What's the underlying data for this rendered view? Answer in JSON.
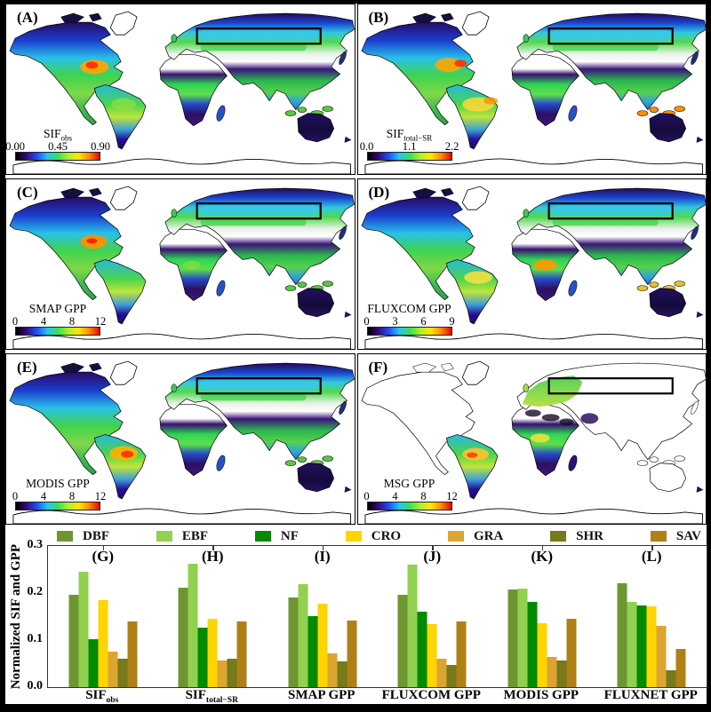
{
  "figure": {
    "map_panels": [
      {
        "id": "A",
        "label": "(A)",
        "coverage": "global",
        "box": true,
        "colorbar": {
          "title": "SIF",
          "subscript": "obs",
          "ticks": [
            "0.00",
            "0.45",
            "0.90"
          ]
        }
      },
      {
        "id": "B",
        "label": "(B)",
        "coverage": "global",
        "box": true,
        "colorbar": {
          "title": "SIF",
          "subscript": "total−SR",
          "ticks": [
            "0.0",
            "1.1",
            "2.2"
          ]
        }
      },
      {
        "id": "C",
        "label": "(C)",
        "coverage": "global",
        "box": true,
        "colorbar": {
          "title": "SMAP GPP",
          "subscript": "",
          "ticks": [
            "0",
            "4",
            "8",
            "12"
          ]
        }
      },
      {
        "id": "D",
        "label": "(D)",
        "coverage": "global",
        "box": true,
        "colorbar": {
          "title": "FLUXCOM GPP",
          "subscript": "",
          "ticks": [
            "0",
            "3",
            "6",
            "9"
          ]
        }
      },
      {
        "id": "E",
        "label": "(E)",
        "coverage": "global",
        "box": true,
        "colorbar": {
          "title": "MODIS GPP",
          "subscript": "",
          "ticks": [
            "0",
            "4",
            "8",
            "12"
          ]
        }
      },
      {
        "id": "F",
        "label": "(F)",
        "coverage": "msg",
        "box": true,
        "colorbar": {
          "title": "MSG GPP",
          "subscript": "",
          "ticks": [
            "0",
            "4",
            "8",
            "12"
          ]
        }
      }
    ],
    "colorbar_gradient": [
      "#000000",
      "#38077d",
      "#1f4eff",
      "#22c8f0",
      "#35e05a",
      "#aaef30",
      "#ffe800",
      "#ff8c00",
      "#ee0000"
    ]
  },
  "legend": {
    "items": [
      {
        "label": "DBF",
        "color": "#6d9632"
      },
      {
        "label": "EBF",
        "color": "#92d14f"
      },
      {
        "label": "NF",
        "color": "#038a03"
      },
      {
        "label": "CRO",
        "color": "#ffd403"
      },
      {
        "label": "GRA",
        "color": "#dca431"
      },
      {
        "label": "SHR",
        "color": "#77791b"
      },
      {
        "label": "SAV",
        "color": "#b07f15"
      }
    ]
  },
  "chart_data": {
    "type": "bar",
    "title": "",
    "ylabel": "Normalized SIF and GPP",
    "ylim": [
      0,
      0.3
    ],
    "yticks": [
      0.0,
      0.1,
      0.2,
      0.3
    ],
    "legend_position": "top",
    "grid": false,
    "group_labels": [
      "(G)",
      "(H)",
      "(I)",
      "(J)",
      "(K)",
      "(L)"
    ],
    "categories": [
      {
        "label": "SIF",
        "subscript": "obs"
      },
      {
        "label": "SIF",
        "subscript": "total−SR"
      },
      {
        "label": "SMAP GPP",
        "subscript": ""
      },
      {
        "label": "FLUXCOM GPP",
        "subscript": ""
      },
      {
        "label": "MODIS GPP",
        "subscript": ""
      },
      {
        "label": "FLUXNET GPP",
        "subscript": ""
      }
    ],
    "series": [
      {
        "name": "DBF",
        "color": "#6d9632",
        "values": [
          0.197,
          0.212,
          0.191,
          0.196,
          0.208,
          0.221
        ]
      },
      {
        "name": "EBF",
        "color": "#92d14f",
        "values": [
          0.245,
          0.262,
          0.218,
          0.26,
          0.21,
          0.181
        ]
      },
      {
        "name": "NF",
        "color": "#038a03",
        "values": [
          0.101,
          0.127,
          0.151,
          0.161,
          0.181,
          0.174
        ]
      },
      {
        "name": "CRO",
        "color": "#ffd403",
        "values": [
          0.185,
          0.145,
          0.178,
          0.134,
          0.135,
          0.172
        ]
      },
      {
        "name": "GRA",
        "color": "#dca431",
        "values": [
          0.076,
          0.056,
          0.071,
          0.06,
          0.064,
          0.131
        ]
      },
      {
        "name": "SHR",
        "color": "#77791b",
        "values": [
          0.061,
          0.061,
          0.055,
          0.047,
          0.057,
          0.036
        ]
      },
      {
        "name": "SAV",
        "color": "#b07f15",
        "values": [
          0.139,
          0.14,
          0.142,
          0.139,
          0.146,
          0.082
        ]
      }
    ]
  }
}
